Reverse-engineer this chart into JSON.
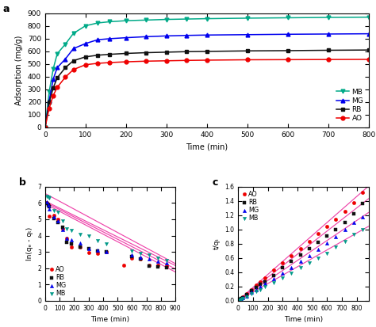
{
  "panel_a": {
    "title": "a",
    "xlabel": "Time (min)",
    "ylabel": "Adsorption (mg/g)",
    "xlim": [
      0,
      800
    ],
    "ylim": [
      0,
      900
    ],
    "xticks": [
      0,
      100,
      200,
      300,
      400,
      500,
      600,
      700,
      800
    ],
    "yticks": [
      0,
      100,
      200,
      300,
      400,
      500,
      600,
      700,
      800,
      900
    ],
    "series": {
      "MB": {
        "color": "#00aa88",
        "marker": "v",
        "x": [
          0,
          10,
          20,
          30,
          50,
          70,
          100,
          130,
          160,
          200,
          250,
          300,
          350,
          400,
          500,
          600,
          700,
          800
        ],
        "y": [
          0,
          280,
          460,
          580,
          655,
          740,
          800,
          822,
          832,
          840,
          845,
          850,
          853,
          856,
          860,
          863,
          866,
          868
        ]
      },
      "MG": {
        "color": "#0000ee",
        "marker": "^",
        "x": [
          0,
          10,
          20,
          30,
          50,
          70,
          100,
          130,
          160,
          200,
          250,
          300,
          350,
          400,
          500,
          600,
          700,
          800
        ],
        "y": [
          0,
          210,
          380,
          470,
          538,
          620,
          660,
          690,
          698,
          706,
          714,
          720,
          724,
          727,
          730,
          733,
          735,
          737
        ]
      },
      "RB": {
        "color": "#111111",
        "marker": "s",
        "x": [
          0,
          10,
          20,
          30,
          50,
          70,
          100,
          130,
          160,
          200,
          250,
          300,
          350,
          400,
          500,
          600,
          700,
          800
        ],
        "y": [
          0,
          195,
          310,
          390,
          470,
          525,
          555,
          568,
          575,
          582,
          588,
          592,
          596,
          598,
          602,
          604,
          607,
          609
        ]
      },
      "AO": {
        "color": "#ee0000",
        "marker": "o",
        "x": [
          0,
          10,
          20,
          30,
          50,
          70,
          100,
          130,
          160,
          200,
          250,
          300,
          350,
          400,
          500,
          600,
          700,
          800
        ],
        "y": [
          0,
          150,
          250,
          315,
          395,
          455,
          493,
          504,
          510,
          516,
          521,
          524,
          527,
          529,
          532,
          533,
          534,
          535
        ]
      }
    }
  },
  "panel_b": {
    "title": "b",
    "xlabel": "Time (min)",
    "ylabel": "ln(qₑ - qₜ)",
    "xlim": [
      0,
      900
    ],
    "ylim": [
      0,
      7
    ],
    "xticks": [
      0,
      100,
      200,
      300,
      400,
      500,
      600,
      700,
      800,
      900
    ],
    "yticks": [
      0,
      1,
      2,
      3,
      4,
      5,
      6,
      7
    ],
    "fit_color": "#ee44aa",
    "series": {
      "AO": {
        "color": "#ee0000",
        "marker": "o",
        "x": [
          10,
          20,
          30,
          60,
          90,
          120,
          150,
          180,
          240,
          300,
          360,
          420,
          540,
          600,
          660,
          720,
          780,
          840
        ],
        "y": [
          6.0,
          5.85,
          5.2,
          5.22,
          4.98,
          4.42,
          3.84,
          3.28,
          3.3,
          2.98,
          2.92,
          3.0,
          2.2,
          2.6,
          2.58,
          2.2,
          2.18,
          2.15
        ]
      },
      "RB": {
        "color": "#111111",
        "marker": "s",
        "x": [
          10,
          20,
          30,
          60,
          90,
          120,
          150,
          180,
          240,
          300,
          360,
          420,
          600,
          660,
          720,
          780,
          840
        ],
        "y": [
          5.95,
          5.85,
          5.75,
          5.05,
          4.8,
          4.5,
          3.58,
          3.48,
          3.28,
          3.18,
          3.08,
          3.02,
          2.72,
          2.58,
          2.12,
          2.08,
          2.02
        ]
      },
      "MG": {
        "color": "#0000ee",
        "marker": "^",
        "x": [
          10,
          20,
          30,
          60,
          90,
          120,
          150,
          180,
          240,
          300,
          360,
          420,
          600,
          660,
          720,
          780,
          840
        ],
        "y": [
          6.05,
          5.88,
          5.62,
          5.12,
          4.88,
          4.38,
          3.82,
          3.72,
          3.55,
          3.22,
          3.12,
          3.02,
          2.82,
          2.68,
          2.58,
          2.42,
          2.32
        ]
      },
      "MB": {
        "color": "#009988",
        "marker": "v",
        "x": [
          10,
          20,
          30,
          60,
          90,
          120,
          150,
          180,
          240,
          300,
          360,
          420,
          600,
          660,
          720,
          780,
          840
        ],
        "y": [
          6.42,
          6.38,
          6.32,
          5.52,
          5.42,
          4.88,
          4.42,
          4.32,
          4.08,
          3.98,
          3.68,
          3.48,
          3.08,
          2.92,
          2.82,
          2.62,
          2.48
        ]
      }
    },
    "fit_lines": {
      "AO": {
        "slope": -0.00465,
        "intercept": 5.95
      },
      "RB": {
        "slope": -0.00455,
        "intercept": 6.05
      },
      "MG": {
        "slope": -0.0044,
        "intercept": 6.12
      },
      "MB": {
        "slope": -0.00478,
        "intercept": 6.58
      }
    }
  },
  "panel_c": {
    "title": "c",
    "xlabel": "Time (min)",
    "ylabel": "t/qₜ",
    "xlim": [
      0,
      880
    ],
    "ylim": [
      0.0,
      1.6
    ],
    "xticks": [
      0,
      100,
      200,
      300,
      400,
      500,
      600,
      700,
      800
    ],
    "yticks": [
      0.0,
      0.2,
      0.4,
      0.6,
      0.8,
      1.0,
      1.2,
      1.4,
      1.6
    ],
    "fit_color": "#ee44aa",
    "series": {
      "AO": {
        "color": "#ee0000",
        "marker": "o",
        "x": [
          10,
          20,
          30,
          60,
          90,
          120,
          150,
          180,
          240,
          300,
          360,
          420,
          480,
          540,
          600,
          660,
          720,
          780,
          840
        ],
        "y": [
          0.02,
          0.03,
          0.05,
          0.1,
          0.16,
          0.22,
          0.27,
          0.32,
          0.43,
          0.53,
          0.63,
          0.73,
          0.83,
          0.94,
          1.04,
          1.14,
          1.25,
          1.38,
          1.52
        ]
      },
      "RB": {
        "color": "#111111",
        "marker": "s",
        "x": [
          10,
          20,
          30,
          60,
          90,
          120,
          150,
          180,
          240,
          300,
          360,
          420,
          480,
          540,
          600,
          660,
          720,
          780,
          840
        ],
        "y": [
          0.02,
          0.03,
          0.04,
          0.09,
          0.14,
          0.19,
          0.23,
          0.27,
          0.36,
          0.46,
          0.55,
          0.64,
          0.73,
          0.82,
          0.91,
          1.0,
          1.1,
          1.22,
          1.36
        ]
      },
      "MG": {
        "color": "#0000ee",
        "marker": "^",
        "x": [
          10,
          20,
          30,
          60,
          90,
          120,
          150,
          180,
          240,
          300,
          360,
          420,
          480,
          540,
          600,
          660,
          720,
          780,
          840
        ],
        "y": [
          0.01,
          0.02,
          0.04,
          0.07,
          0.12,
          0.16,
          0.2,
          0.24,
          0.31,
          0.39,
          0.47,
          0.55,
          0.63,
          0.72,
          0.81,
          0.9,
          1.0,
          1.1,
          1.18
        ]
      },
      "MB": {
        "color": "#009988",
        "marker": "v",
        "x": [
          10,
          20,
          30,
          60,
          90,
          120,
          150,
          180,
          240,
          300,
          360,
          420,
          480,
          540,
          600,
          660,
          720,
          780,
          840
        ],
        "y": [
          0.01,
          0.02,
          0.03,
          0.06,
          0.1,
          0.13,
          0.16,
          0.2,
          0.26,
          0.32,
          0.39,
          0.46,
          0.53,
          0.6,
          0.67,
          0.75,
          0.83,
          0.93,
          1.0
        ]
      }
    },
    "fit_lines": {
      "AO": {
        "slope": 0.00182,
        "intercept": 0.005
      },
      "RB": {
        "slope": 0.00162,
        "intercept": 0.005
      },
      "MG": {
        "slope": 0.0014,
        "intercept": 0.005
      },
      "MB": {
        "slope": 0.00118,
        "intercept": 0.005
      }
    }
  }
}
